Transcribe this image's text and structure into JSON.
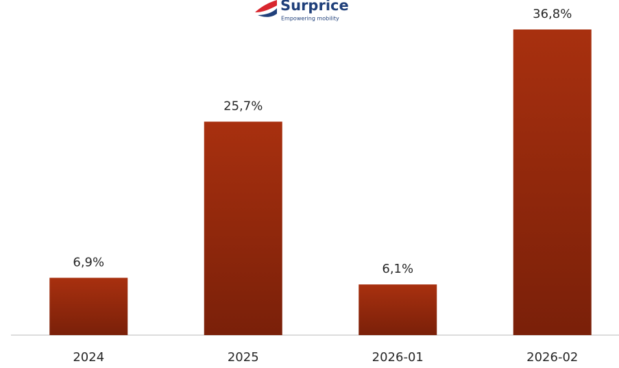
{
  "logo": {
    "name": "Surprice",
    "tagline": "Empowering mobility"
  },
  "chart_data": {
    "type": "bar",
    "categories": [
      "2024",
      "2025",
      "2026-01",
      "2026-02"
    ],
    "values": [
      6.9,
      25.7,
      6.1,
      36.8
    ],
    "value_labels": [
      "6,9%",
      "25,7%",
      "6,1%",
      "36,8%"
    ],
    "color": "#a02e0f"
  }
}
